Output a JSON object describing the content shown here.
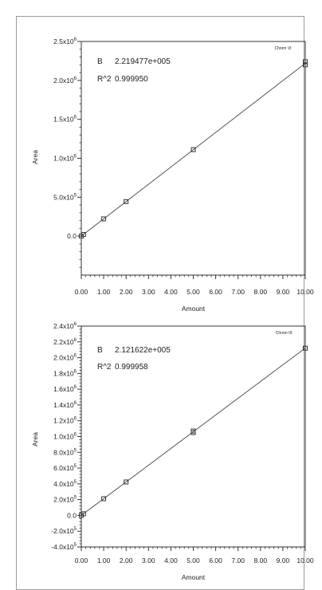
{
  "chart_data": [
    {
      "type": "scatter",
      "title": "Chrom VI",
      "xlabel": "Amount",
      "ylabel": "Area",
      "xlim": [
        0,
        10
      ],
      "ylim": [
        -500000,
        2500000
      ],
      "x_ticks": [
        "0.00",
        "1.00",
        "2.00",
        "3.00",
        "4.00",
        "5.00",
        "6.00",
        "7.00",
        "8.00",
        "9.00",
        "10.00"
      ],
      "y_ticks": [
        {
          "value": 2500000,
          "mant": "2.5x10",
          "exp": "6"
        },
        {
          "value": 2000000,
          "mant": "2.0x10",
          "exp": "6"
        },
        {
          "value": 1500000,
          "mant": "1.5x10",
          "exp": "6"
        },
        {
          "value": 1000000,
          "mant": "1.0x10",
          "exp": "6"
        },
        {
          "value": 500000,
          "mant": "5.0x10",
          "exp": "5"
        },
        {
          "value": 0,
          "mant": "0.0",
          "exp": ""
        }
      ],
      "annotations": {
        "b_label": "B",
        "b_value": "2.219477e+005",
        "r2_label": "R^2",
        "r2_value": "0.999950"
      },
      "series": [
        {
          "type": "scatter",
          "x": [
            0,
            0.1,
            1,
            2,
            5,
            10,
            10
          ],
          "y": [
            0,
            22000,
            222000,
            444000,
            1110000,
            2200000,
            2240000
          ]
        },
        {
          "type": "line",
          "slope": 221947.7,
          "intercept": 0
        }
      ],
      "legend": "none",
      "grid": false
    },
    {
      "type": "scatter",
      "title": "Chrom III",
      "xlabel": "Amount",
      "ylabel": "Area",
      "xlim": [
        0,
        10
      ],
      "ylim": [
        -400000,
        2400000
      ],
      "x_ticks": [
        "0.00",
        "1.00",
        "2.00",
        "3.00",
        "4.00",
        "5.00",
        "6.00",
        "7.00",
        "8.00",
        "9.00",
        "10.00"
      ],
      "y_ticks": [
        {
          "value": 2400000,
          "mant": "2.4x10",
          "exp": "6"
        },
        {
          "value": 2200000,
          "mant": "2.2x10",
          "exp": "6"
        },
        {
          "value": 2000000,
          "mant": "2.0x10",
          "exp": "6"
        },
        {
          "value": 1800000,
          "mant": "1.8x10",
          "exp": "6"
        },
        {
          "value": 1600000,
          "mant": "1.6x10",
          "exp": "6"
        },
        {
          "value": 1400000,
          "mant": "1.4x10",
          "exp": "6"
        },
        {
          "value": 1200000,
          "mant": "1.2x10",
          "exp": "6"
        },
        {
          "value": 1000000,
          "mant": "1.0x10",
          "exp": "6"
        },
        {
          "value": 800000,
          "mant": "8.0x10",
          "exp": "5"
        },
        {
          "value": 600000,
          "mant": "6.0x10",
          "exp": "5"
        },
        {
          "value": 400000,
          "mant": "4.0x10",
          "exp": "5"
        },
        {
          "value": 200000,
          "mant": "2.0x10",
          "exp": "5"
        },
        {
          "value": 0,
          "mant": "0.0",
          "exp": ""
        },
        {
          "value": -200000,
          "mant": "-2.0x10",
          "exp": "5"
        },
        {
          "value": -400000,
          "mant": "-4.0x10",
          "exp": "5"
        }
      ],
      "annotations": {
        "b_label": "B",
        "b_value": "2.121622e+005",
        "r2_label": "R^2",
        "r2_value": "0.999958"
      },
      "series": [
        {
          "type": "scatter",
          "x": [
            0,
            0.1,
            1,
            2,
            5,
            5,
            10
          ],
          "y": [
            0,
            21000,
            212000,
            424000,
            1050000,
            1070000,
            2120000
          ]
        },
        {
          "type": "line",
          "slope": 212162.2,
          "intercept": 0
        }
      ],
      "legend": "none",
      "grid": false
    }
  ]
}
